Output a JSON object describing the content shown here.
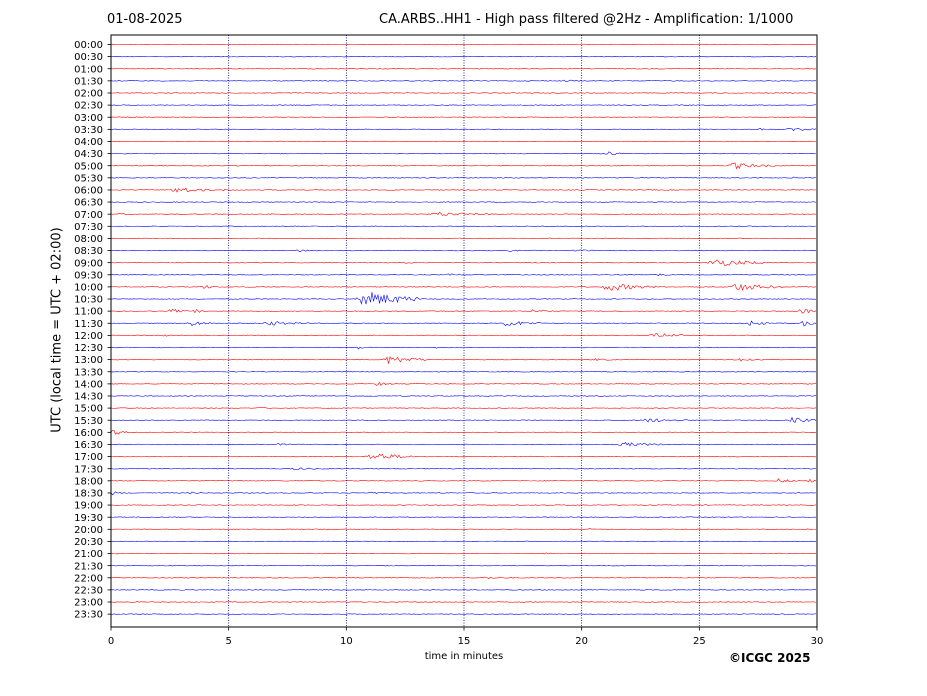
{
  "header": {
    "date": "01-08-2025",
    "title": "CA.ARBS..HH1 - High pass filtered @2Hz - Amplification: 1/1000"
  },
  "footer": {
    "credit": "©ICGC 2025"
  },
  "chart_data": {
    "type": "line",
    "xlabel": "time in minutes",
    "ylabel": "UTC (local time = UTC + 02:00)",
    "xlim": [
      0,
      30
    ],
    "x_ticks": [
      0,
      5,
      10,
      15,
      20,
      25,
      30
    ],
    "x_gridlines": [
      5,
      10,
      15,
      20,
      25
    ],
    "y_ticks": [
      "00:00",
      "00:30",
      "01:00",
      "01:30",
      "02:00",
      "02:30",
      "03:00",
      "03:30",
      "04:00",
      "04:30",
      "05:00",
      "05:30",
      "06:00",
      "06:30",
      "07:00",
      "07:30",
      "08:00",
      "08:30",
      "09:00",
      "09:30",
      "10:00",
      "10:30",
      "11:00",
      "11:30",
      "12:00",
      "12:30",
      "13:00",
      "13:30",
      "14:00",
      "14:30",
      "15:00",
      "15:30",
      "16:00",
      "16:30",
      "17:00",
      "17:30",
      "18:00",
      "18:30",
      "19:00",
      "19:30",
      "20:00",
      "20:30",
      "21:00",
      "21:30",
      "22:00",
      "22:30",
      "23:00",
      "23:30"
    ],
    "trace_colors": [
      "#ff0000",
      "#0000ff"
    ],
    "events": [
      {
        "row": "01:30",
        "start": 19.2,
        "end": 20.0,
        "amp": 1
      },
      {
        "row": "03:30",
        "start": 27.5,
        "end": 28.0,
        "amp": 1
      },
      {
        "row": "03:30",
        "start": 28.7,
        "end": 30.0,
        "amp": 2
      },
      {
        "row": "04:30",
        "start": 21.0,
        "end": 21.8,
        "amp": 2
      },
      {
        "row": "05:00",
        "start": 26.2,
        "end": 28.2,
        "amp": 3
      },
      {
        "row": "05:30",
        "start": 28.8,
        "end": 29.2,
        "amp": 1
      },
      {
        "row": "06:00",
        "start": 2.5,
        "end": 4.3,
        "amp": 3
      },
      {
        "row": "06:00",
        "start": 4.7,
        "end": 5.5,
        "amp": 1
      },
      {
        "row": "07:00",
        "start": 0.3,
        "end": 0.9,
        "amp": 1
      },
      {
        "row": "07:00",
        "start": 13.5,
        "end": 16.2,
        "amp": 2
      },
      {
        "row": "08:30",
        "start": 7.8,
        "end": 9.2,
        "amp": 1
      },
      {
        "row": "08:30",
        "start": 16.8,
        "end": 17.4,
        "amp": 1
      },
      {
        "row": "08:30",
        "start": 19.6,
        "end": 20.6,
        "amp": 1
      },
      {
        "row": "09:00",
        "start": 12.3,
        "end": 12.9,
        "amp": 1
      },
      {
        "row": "09:00",
        "start": 25.3,
        "end": 27.8,
        "amp": 4
      },
      {
        "row": "09:30",
        "start": 14.2,
        "end": 15.6,
        "amp": 1
      },
      {
        "row": "09:30",
        "start": 23.2,
        "end": 23.8,
        "amp": 1
      },
      {
        "row": "10:00",
        "start": 3.8,
        "end": 4.5,
        "amp": 2
      },
      {
        "row": "10:00",
        "start": 5.2,
        "end": 5.9,
        "amp": 1
      },
      {
        "row": "10:00",
        "start": 20.8,
        "end": 23.2,
        "amp": 4
      },
      {
        "row": "10:00",
        "start": 26.2,
        "end": 28.6,
        "amp": 4
      },
      {
        "row": "10:30",
        "start": 10.4,
        "end": 13.3,
        "amp": 8
      },
      {
        "row": "11:00",
        "start": 2.4,
        "end": 3.3,
        "amp": 2
      },
      {
        "row": "11:00",
        "start": 3.5,
        "end": 3.9,
        "amp": 3
      },
      {
        "row": "11:00",
        "start": 17.8,
        "end": 18.8,
        "amp": 2
      },
      {
        "row": "11:00",
        "start": 29.2,
        "end": 30.0,
        "amp": 3
      },
      {
        "row": "11:30",
        "start": 3.2,
        "end": 4.3,
        "amp": 3
      },
      {
        "row": "11:30",
        "start": 6.4,
        "end": 8.4,
        "amp": 2
      },
      {
        "row": "11:30",
        "start": 16.5,
        "end": 18.3,
        "amp": 3
      },
      {
        "row": "11:30",
        "start": 27.0,
        "end": 28.0,
        "amp": 3
      },
      {
        "row": "11:30",
        "start": 29.3,
        "end": 30.0,
        "amp": 3
      },
      {
        "row": "12:00",
        "start": 2.2,
        "end": 2.6,
        "amp": 1
      },
      {
        "row": "12:00",
        "start": 22.8,
        "end": 24.3,
        "amp": 3
      },
      {
        "row": "12:30",
        "start": 10.4,
        "end": 10.9,
        "amp": 2
      },
      {
        "row": "12:30",
        "start": 13.8,
        "end": 14.2,
        "amp": 1
      },
      {
        "row": "13:00",
        "start": 11.5,
        "end": 13.5,
        "amp": 4
      },
      {
        "row": "13:00",
        "start": 20.3,
        "end": 21.5,
        "amp": 1
      },
      {
        "row": "13:00",
        "start": 26.5,
        "end": 27.8,
        "amp": 2
      },
      {
        "row": "14:00",
        "start": 11.2,
        "end": 12.0,
        "amp": 2
      },
      {
        "row": "15:00",
        "start": 6.2,
        "end": 6.8,
        "amp": 1
      },
      {
        "row": "15:00",
        "start": 9.5,
        "end": 9.9,
        "amp": 1
      },
      {
        "row": "15:30",
        "start": 22.5,
        "end": 24.5,
        "amp": 2
      },
      {
        "row": "15:30",
        "start": 28.8,
        "end": 30.0,
        "amp": 3
      },
      {
        "row": "16:00",
        "start": 0.0,
        "end": 0.7,
        "amp": 3
      },
      {
        "row": "16:30",
        "start": 7.0,
        "end": 7.7,
        "amp": 1
      },
      {
        "row": "16:30",
        "start": 21.5,
        "end": 23.5,
        "amp": 2
      },
      {
        "row": "17:00",
        "start": 10.8,
        "end": 12.9,
        "amp": 4
      },
      {
        "row": "17:30",
        "start": 7.6,
        "end": 9.0,
        "amp": 1
      },
      {
        "row": "18:00",
        "start": 28.2,
        "end": 29.2,
        "amp": 2
      },
      {
        "row": "18:00",
        "start": 29.6,
        "end": 30.0,
        "amp": 2
      },
      {
        "row": "18:30",
        "start": 0.0,
        "end": 0.5,
        "amp": 2
      },
      {
        "row": "18:30",
        "start": 3.3,
        "end": 4.0,
        "amp": 1
      },
      {
        "row": "18:30",
        "start": 11.0,
        "end": 11.7,
        "amp": 1
      },
      {
        "row": "20:00",
        "start": 20.3,
        "end": 20.7,
        "amp": 2
      },
      {
        "row": "21:00",
        "start": 18.4,
        "end": 18.8,
        "amp": 1
      },
      {
        "row": "22:00",
        "start": 15.7,
        "end": 17.2,
        "amp": 1
      }
    ]
  }
}
